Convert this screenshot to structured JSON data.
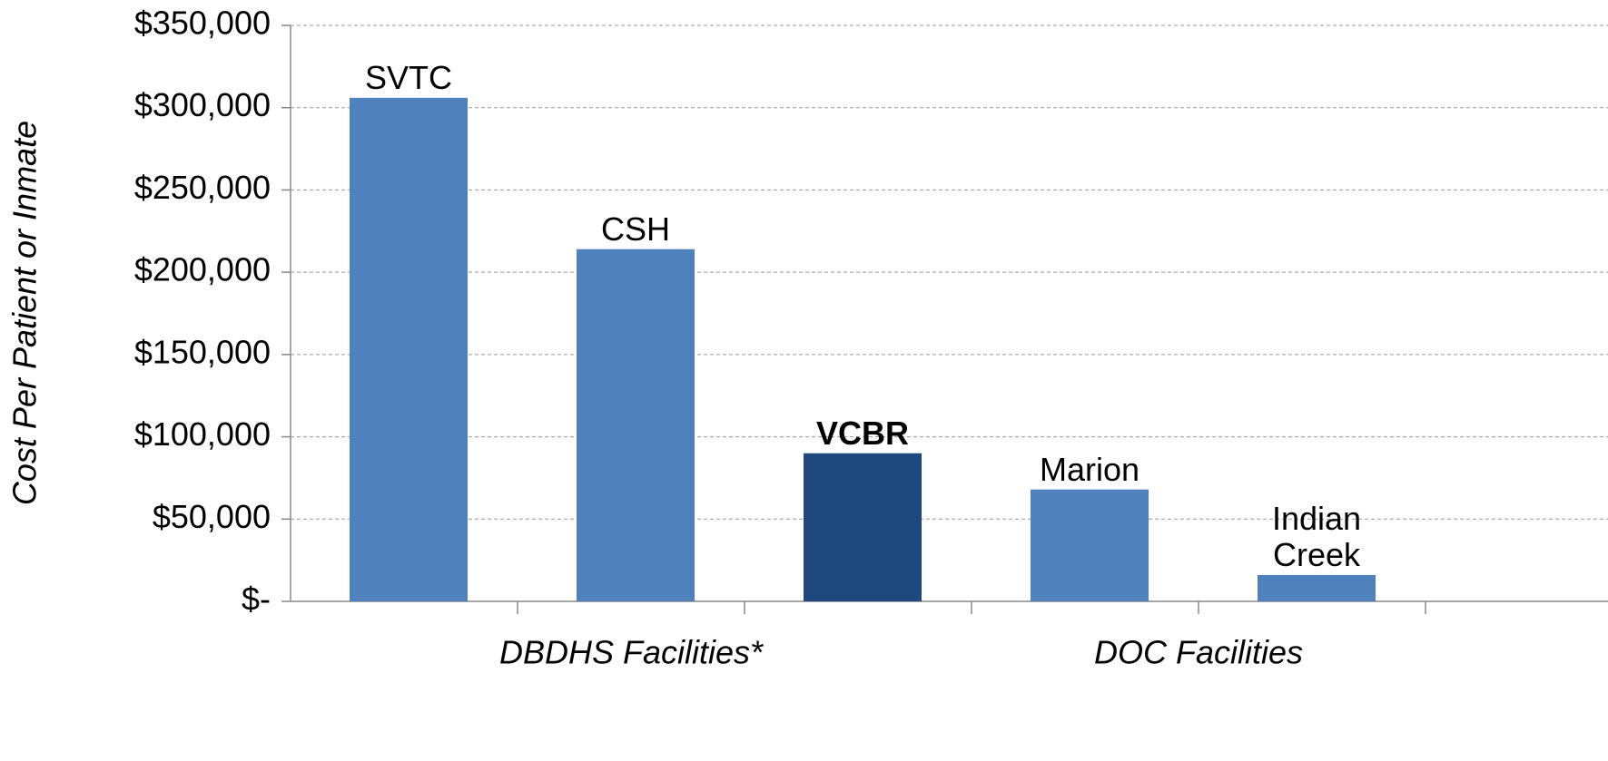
{
  "chart_data": {
    "type": "bar",
    "y_label": "Cost Per Patient or Inmate",
    "categories": [
      "SVTC",
      "CSH",
      "VCBR",
      "Marion",
      "Indian Creek"
    ],
    "values": [
      306000,
      214000,
      90000,
      68000,
      16000
    ],
    "colors": [
      "#4f81bd",
      "#4f81bd",
      "#1f497d",
      "#4f81bd",
      "#4f81bd"
    ],
    "label_bold": [
      false,
      false,
      true,
      false,
      false
    ],
    "groups": [
      {
        "label": "DBDHS Facilities*",
        "size": 3
      },
      {
        "label": "DOC Facilities",
        "size": 2
      }
    ],
    "ylim": [
      0,
      350000
    ],
    "yticks": [
      {
        "value": 0,
        "label": "$-"
      },
      {
        "value": 50000,
        "label": "$50,000"
      },
      {
        "value": 100000,
        "label": "$100,000"
      },
      {
        "value": 150000,
        "label": "$150,000"
      },
      {
        "value": 200000,
        "label": "$200,000"
      },
      {
        "value": 250000,
        "label": "$250,000"
      },
      {
        "value": 300000,
        "label": "$300,000"
      },
      {
        "value": 350000,
        "label": "$350,000"
      }
    ],
    "grid": true
  }
}
